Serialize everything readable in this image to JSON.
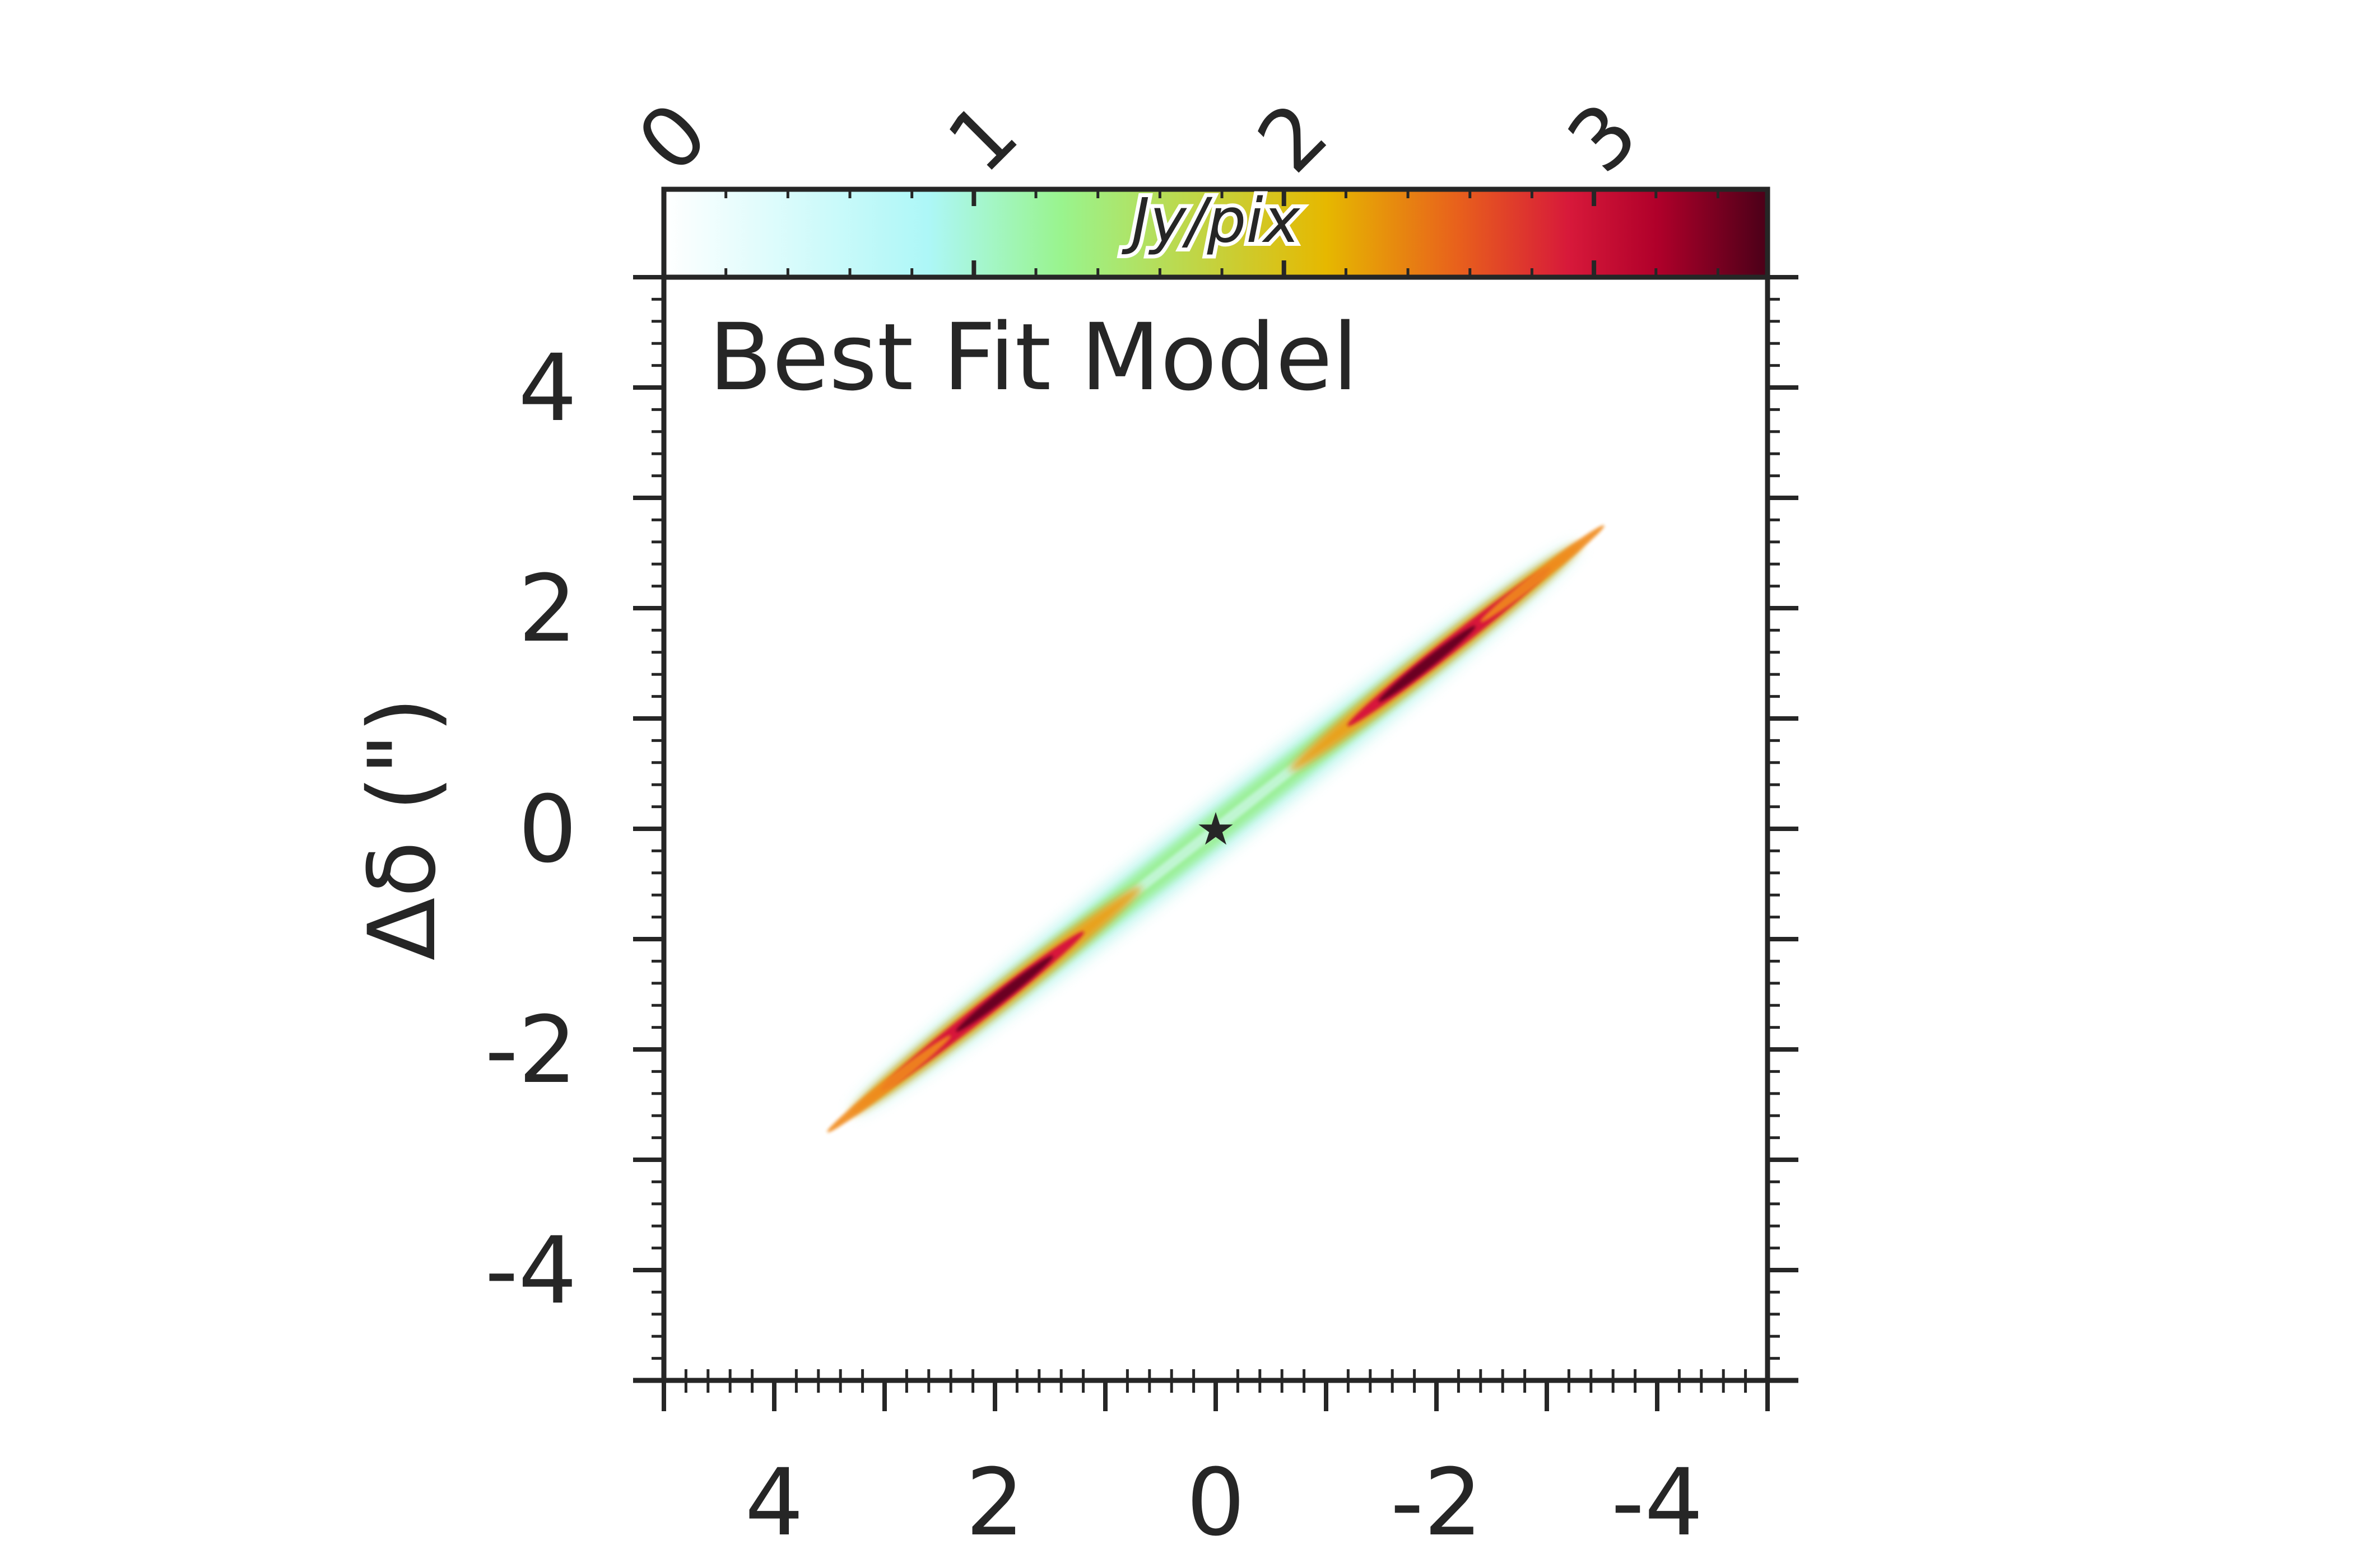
{
  "chart_data": {
    "type": "heatmap",
    "title": "Best Fit Model",
    "xlabel": "",
    "ylabel": "Δδ (\")",
    "xlim": [
      5,
      -5
    ],
    "ylim": [
      -5,
      5
    ],
    "x_ticks": [
      4,
      2,
      0,
      -2,
      -4
    ],
    "x_tick_labels": [
      "4",
      "2",
      "0",
      "-2",
      "-4"
    ],
    "y_ticks": [
      4,
      2,
      0,
      -2,
      -4
    ],
    "y_tick_labels": [
      "4",
      "2",
      "0",
      "-2",
      "-4"
    ],
    "grid": false,
    "colormap": "white-cyan-green-yellow-orange-red-darkred",
    "colorbar": {
      "label": "Jy/pix",
      "range": [
        0,
        3.56
      ],
      "ticks": [
        0,
        1,
        2,
        3
      ],
      "tick_labels": [
        "0",
        "1",
        "2",
        "3"
      ],
      "stops": [
        "#ffffff",
        "#adf7f7",
        "#99f48e",
        "#e6b800",
        "#e8601c",
        "#d7193a",
        "#b0002a",
        "#4a0018"
      ]
    },
    "disk": {
      "description_axis_endpoints": [
        [
          3.2,
          -2.5
        ],
        [
          -3.2,
          2.5
        ]
      ],
      "peaks": [
        [
          2.0,
          -1.55
        ],
        [
          -2.0,
          1.55
        ]
      ],
      "peak_value": 3.5,
      "ring_value": 1.7
    },
    "star_marker": {
      "x": 0,
      "y": 0,
      "symbol": "★"
    }
  }
}
